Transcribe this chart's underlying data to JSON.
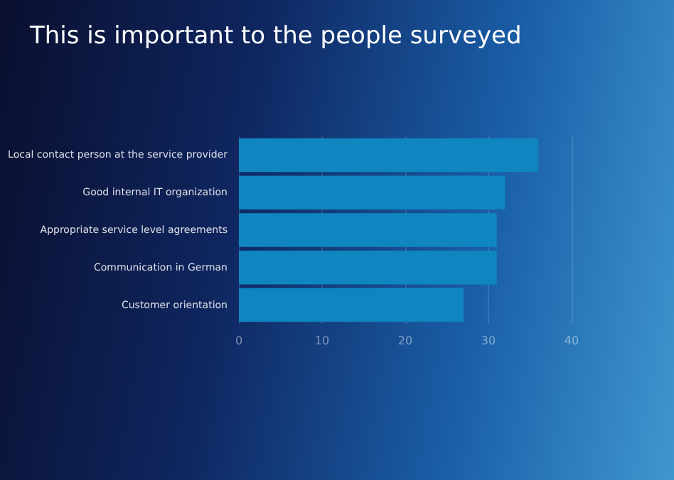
{
  "chart_data": {
    "type": "bar",
    "orientation": "horizontal",
    "title": "This is important to the people surveyed",
    "categories": [
      "Local contact person at the service provider",
      "Good internal IT organization",
      "Appropriate service level agreements",
      "Communication in German",
      "Customer orientation"
    ],
    "values": [
      36,
      32,
      31,
      31,
      27
    ],
    "color": "#0f86bf",
    "xlim": [
      0,
      40
    ],
    "xticks": [
      0,
      10,
      20,
      30,
      40
    ],
    "grid": "x"
  }
}
